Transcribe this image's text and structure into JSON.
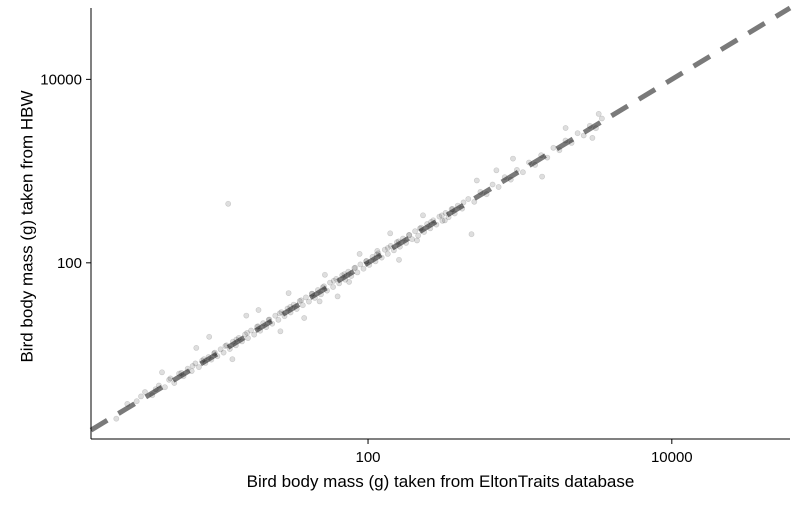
{
  "chart_data": {
    "type": "scatter",
    "title": "",
    "xlabel": "Bird body mass (g) taken from EltonTraits database",
    "ylabel": "Bird body mass (g) taken from HBW",
    "x_scale": "log10",
    "y_scale": "log10",
    "xlim": [
      1.5,
      60000
    ],
    "ylim": [
      1.2,
      60000
    ],
    "x_ticks": [
      100,
      10000
    ],
    "y_ticks": [
      100,
      10000
    ],
    "x_tick_labels": [
      "100",
      "10000"
    ],
    "y_tick_labels": [
      "100",
      "10000"
    ],
    "grid": false,
    "legend": "none",
    "reference_line": {
      "type": "identity",
      "style": "dashed",
      "color": "#7a7a7a"
    },
    "point_color": "#000000",
    "point_opacity": 0.13,
    "points": [
      [
        2.2,
        2.0
      ],
      [
        2.6,
        2.9
      ],
      [
        3.0,
        3.1
      ],
      [
        3.4,
        3.9
      ],
      [
        3.8,
        3.6
      ],
      [
        4.2,
        4.6
      ],
      [
        4.6,
        4.4
      ],
      [
        5.0,
        5.5
      ],
      [
        5.3,
        4.9
      ],
      [
        5.7,
        6.2
      ],
      [
        6.1,
        5.8
      ],
      [
        6.5,
        7.0
      ],
      [
        6.9,
        6.6
      ],
      [
        7.3,
        8.0
      ],
      [
        7.7,
        7.3
      ],
      [
        8.1,
        8.6
      ],
      [
        8.5,
        8.1
      ],
      [
        8.9,
        9.4
      ],
      [
        9.3,
        8.8
      ],
      [
        9.7,
        10.3
      ],
      [
        10.2,
        9.6
      ],
      [
        10.7,
        11.4
      ],
      [
        11.2,
        10.5
      ],
      [
        11.7,
        12.6
      ],
      [
        12.3,
        11.5
      ],
      [
        12.9,
        13.8
      ],
      [
        13.5,
        12.6
      ],
      [
        14.1,
        15.2
      ],
      [
        14.8,
        13.9
      ],
      [
        15.5,
        16.6
      ],
      [
        16.2,
        15.1
      ],
      [
        17.0,
        18.3
      ],
      [
        17.8,
        16.5
      ],
      [
        18.6,
        20.1
      ],
      [
        19.5,
        18.2
      ],
      [
        20.4,
        22.0
      ],
      [
        21.4,
        19.9
      ],
      [
        22.4,
        24.1
      ],
      [
        23.4,
        21.7
      ],
      [
        24.5,
        26.5
      ],
      [
        25.7,
        23.9
      ],
      [
        26.9,
        29.0
      ],
      [
        28.2,
        26.2
      ],
      [
        29.5,
        31.8
      ],
      [
        30.9,
        28.7
      ],
      [
        32.4,
        35.0
      ],
      [
        33.9,
        31.4
      ],
      [
        35.5,
        38.3
      ],
      [
        37.2,
        34.5
      ],
      [
        39.0,
        42.0
      ],
      [
        40.8,
        37.8
      ],
      [
        42.7,
        46.2
      ],
      [
        44.7,
        41.5
      ],
      [
        46.8,
        50.6
      ],
      [
        49.0,
        45.4
      ],
      [
        51.3,
        55.5
      ],
      [
        53.7,
        49.8
      ],
      [
        56.2,
        60.8
      ],
      [
        58.9,
        54.5
      ],
      [
        61.7,
        66.7
      ],
      [
        64.6,
        59.8
      ],
      [
        67.6,
        73.1
      ],
      [
        70.8,
        65.5
      ],
      [
        74.1,
        80.1
      ],
      [
        77.6,
        71.8
      ],
      [
        81.3,
        87.8
      ],
      [
        85.1,
        78.7
      ],
      [
        89.1,
        96.2
      ],
      [
        93.3,
        86.3
      ],
      [
        97.7,
        105
      ],
      [
        102,
        95
      ],
      [
        107,
        116
      ],
      [
        112,
        104
      ],
      [
        117,
        127
      ],
      [
        123,
        114
      ],
      [
        129,
        139
      ],
      [
        135,
        125
      ],
      [
        141,
        153
      ],
      [
        148,
        137
      ],
      [
        155,
        168
      ],
      [
        162,
        150
      ],
      [
        170,
        184
      ],
      [
        178,
        165
      ],
      [
        186,
        201
      ],
      [
        195,
        181
      ],
      [
        204,
        221
      ],
      [
        214,
        198
      ],
      [
        224,
        242
      ],
      [
        234,
        217
      ],
      [
        245,
        265
      ],
      [
        257,
        238
      ],
      [
        269,
        291
      ],
      [
        282,
        261
      ],
      [
        295,
        319
      ],
      [
        309,
        287
      ],
      [
        324,
        350
      ],
      [
        339,
        314
      ],
      [
        355,
        384
      ],
      [
        372,
        345
      ],
      [
        390,
        421
      ],
      [
        417,
        390
      ],
      [
        457,
        496
      ],
      [
        501,
        463
      ],
      [
        549,
        593
      ],
      [
        603,
        560
      ],
      [
        661,
        714
      ],
      [
        724,
        670
      ],
      [
        794,
        858
      ],
      [
        871,
        808
      ],
      [
        955,
        1031
      ],
      [
        1047,
        972
      ],
      [
        1148,
        1240
      ],
      [
        1259,
        1168
      ],
      [
        1380,
        1490
      ],
      [
        1514,
        1405
      ],
      [
        1660,
        1793
      ],
      [
        1820,
        1690
      ],
      [
        1995,
        2155
      ],
      [
        2188,
        2030
      ],
      [
        2399,
        2590
      ],
      [
        2630,
        2442
      ],
      [
        2884,
        3115
      ],
      [
        3162,
        2935
      ],
      [
        3467,
        3745
      ],
      [
        3.2,
        3.5
      ],
      [
        4.0,
        4.2
      ],
      [
        4.9,
        5.3
      ],
      [
        5.9,
        6.3
      ],
      [
        7.0,
        7.5
      ],
      [
        8.3,
        8.9
      ],
      [
        9.8,
        10.5
      ],
      [
        11.5,
        12.4
      ],
      [
        13.6,
        14.6
      ],
      [
        16.0,
        17.2
      ],
      [
        18.9,
        20.3
      ],
      [
        22.2,
        23.9
      ],
      [
        26.2,
        28.1
      ],
      [
        30.8,
        33.1
      ],
      [
        36.3,
        39.0
      ],
      [
        42.8,
        45.9
      ],
      [
        50.4,
        54.1
      ],
      [
        59.4,
        63.7
      ],
      [
        69.9,
        75.1
      ],
      [
        82.4,
        88.5
      ],
      [
        97.1,
        104
      ],
      [
        114,
        123
      ],
      [
        135,
        145
      ],
      [
        159,
        171
      ],
      [
        187,
        201
      ],
      [
        220,
        237
      ],
      [
        260,
        279
      ],
      [
        306,
        329
      ],
      [
        360,
        387
      ],
      [
        425,
        456
      ],
      [
        4.4,
        6.4
      ],
      [
        7.4,
        11.8
      ],
      [
        9.0,
        15.6
      ],
      [
        12.8,
        8.9
      ],
      [
        15.8,
        26.6
      ],
      [
        19.0,
        30.6
      ],
      [
        26.5,
        17.9
      ],
      [
        30.0,
        46.7
      ],
      [
        38.0,
        25.0
      ],
      [
        52.0,
        74.0
      ],
      [
        63.0,
        43.0
      ],
      [
        88.0,
        125
      ],
      [
        140,
        210
      ],
      [
        160,
        108
      ],
      [
        230,
        330
      ],
      [
        480,
        205
      ],
      [
        520,
        790
      ],
      [
        700,
        1020
      ],
      [
        900,
        1370
      ],
      [
        1400,
        870
      ],
      [
        2000,
        2950
      ],
      [
        3000,
        2300
      ],
      [
        3300,
        4200
      ],
      [
        12.0,
        440
      ],
      [
        48.0,
        38.0
      ],
      [
        75.0,
        62.0
      ],
      [
        115,
        135
      ],
      [
        210,
        175
      ],
      [
        320,
        290
      ]
    ]
  }
}
